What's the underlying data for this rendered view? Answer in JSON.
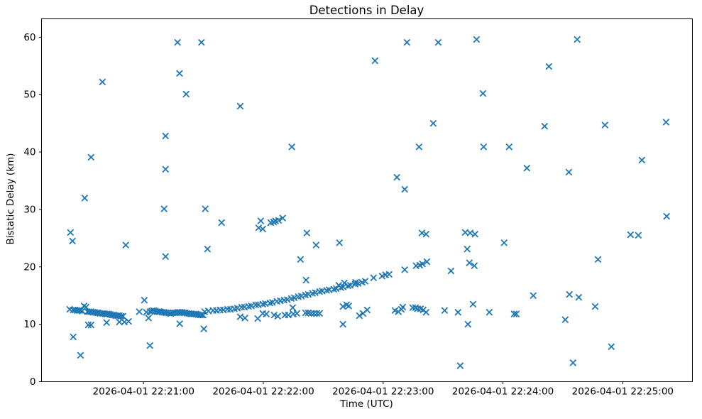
{
  "figure": {
    "background": "#ffffff",
    "title": "Detections in Delay",
    "xlabel": "Time (UTC)",
    "ylabel": "Bistatic Delay (km)"
  },
  "chart_data": {
    "type": "scatter",
    "title": "Detections in Delay",
    "xlabel": "Time (UTC)",
    "ylabel": "Bistatic Delay (km)",
    "marker": {
      "style": "x",
      "color": "#1f77b4",
      "half_size": 4.2,
      "stroke_width": 1.8
    },
    "axis_color": "#000000",
    "grid": false,
    "legend": null,
    "x_unit": "seconds after 2026-04-01 22:20:00 UTC",
    "xlim": [
      8.9,
      334.9
    ],
    "ylim": [
      0,
      63.2
    ],
    "x_ticks": [
      {
        "value": 60,
        "label": "2026-04-01 22:21:00"
      },
      {
        "value": 120,
        "label": "2026-04-01 22:22:00"
      },
      {
        "value": 180,
        "label": "2026-04-01 22:23:00"
      },
      {
        "value": 240,
        "label": "2026-04-01 22:24:00"
      },
      {
        "value": 300,
        "label": "2026-04-01 22:25:00"
      }
    ],
    "y_ticks": [
      0,
      10,
      20,
      30,
      40,
      50,
      60
    ],
    "points": [
      [
        23,
        12.6
      ],
      [
        23.4,
        26
      ],
      [
        24.4,
        24.5
      ],
      [
        24.8,
        12.5
      ],
      [
        24.8,
        7.8
      ],
      [
        25.7,
        12.5
      ],
      [
        26.6,
        12.4
      ],
      [
        27.5,
        12.4
      ],
      [
        28.4,
        12.4
      ],
      [
        28.4,
        4.6
      ],
      [
        29.3,
        12.3
      ],
      [
        30.2,
        13.2
      ],
      [
        30.5,
        32
      ],
      [
        31.2,
        13
      ],
      [
        31.9,
        12.2
      ],
      [
        32.3,
        9.9
      ],
      [
        32.8,
        12.2
      ],
      [
        33.7,
        12.2
      ],
      [
        33.7,
        9.9
      ],
      [
        33.7,
        39.1
      ],
      [
        34.6,
        12.1
      ],
      [
        35.5,
        12.1
      ],
      [
        36.4,
        12
      ],
      [
        37.2,
        12
      ],
      [
        38.1,
        11.9
      ],
      [
        39,
        11.9
      ],
      [
        39.4,
        52.2
      ],
      [
        39.9,
        11.9
      ],
      [
        40.8,
        11.8
      ],
      [
        41.5,
        10.3
      ],
      [
        41.7,
        11.8
      ],
      [
        42.6,
        11.8
      ],
      [
        43.5,
        11.7
      ],
      [
        44.4,
        11.6
      ],
      [
        45.3,
        11.6
      ],
      [
        46.1,
        11.5
      ],
      [
        47,
        11.5
      ],
      [
        47.9,
        11.5
      ],
      [
        47.9,
        10.4
      ],
      [
        48.8,
        11.4
      ],
      [
        49.7,
        11.4
      ],
      [
        50.4,
        10.4
      ],
      [
        51.1,
        23.8
      ],
      [
        52.5,
        10.5
      ],
      [
        57.9,
        12.2
      ],
      [
        60.4,
        14.2
      ],
      [
        61.4,
        12.1
      ],
      [
        62.5,
        11.1
      ],
      [
        63.2,
        6.3
      ],
      [
        63.2,
        12.2
      ],
      [
        64.1,
        12.3
      ],
      [
        65,
        12.4
      ],
      [
        65.9,
        12.3
      ],
      [
        66.8,
        12.2
      ],
      [
        67.7,
        12.2
      ],
      [
        68.5,
        12.2
      ],
      [
        69.4,
        12.1
      ],
      [
        70.3,
        12.1
      ],
      [
        70.3,
        30.1
      ],
      [
        71,
        42.8
      ],
      [
        71,
        37
      ],
      [
        71,
        21.8
      ],
      [
        71.2,
        12
      ],
      [
        72.1,
        12
      ],
      [
        73,
        11.9
      ],
      [
        73.9,
        11.9
      ],
      [
        74.8,
        12
      ],
      [
        75.6,
        12
      ],
      [
        76.5,
        12
      ],
      [
        77,
        59.1
      ],
      [
        77.4,
        12.1
      ],
      [
        78,
        53.7
      ],
      [
        78.1,
        10.1
      ],
      [
        78.3,
        12.1
      ],
      [
        79.2,
        12.1
      ],
      [
        80.1,
        12
      ],
      [
        81,
        12
      ],
      [
        81.3,
        50.1
      ],
      [
        81.9,
        11.9
      ],
      [
        82.8,
        11.9
      ],
      [
        83.6,
        11.8
      ],
      [
        84.5,
        11.8
      ],
      [
        85.4,
        11.8
      ],
      [
        86.3,
        11.8
      ],
      [
        87.2,
        11.7
      ],
      [
        88.1,
        11.6
      ],
      [
        89,
        59.1
      ],
      [
        89,
        11.6
      ],
      [
        89.9,
        11.6
      ],
      [
        90.2,
        9.2
      ],
      [
        90.6,
        12.2
      ],
      [
        90.9,
        30.1
      ],
      [
        92,
        23.1
      ],
      [
        92.5,
        12.3
      ],
      [
        94.8,
        12.4
      ],
      [
        96.5,
        12.4
      ],
      [
        98.4,
        12.5
      ],
      [
        99.1,
        27.7
      ],
      [
        100,
        12.5
      ],
      [
        102,
        12.6
      ],
      [
        103.5,
        12.6
      ],
      [
        105.5,
        12.7
      ],
      [
        107,
        12.8
      ],
      [
        108.4,
        48
      ],
      [
        108.4,
        11.3
      ],
      [
        109.1,
        13
      ],
      [
        110.5,
        13
      ],
      [
        110.8,
        11.1
      ],
      [
        112.6,
        13.1
      ],
      [
        114,
        13.2
      ],
      [
        116.2,
        13.4
      ],
      [
        117.2,
        11
      ],
      [
        117.5,
        13.4
      ],
      [
        117.6,
        26.8
      ],
      [
        118.7,
        28
      ],
      [
        119.7,
        13.5
      ],
      [
        119.7,
        26.6
      ],
      [
        119.7,
        11.9
      ],
      [
        121,
        13.6
      ],
      [
        121.5,
        11.8
      ],
      [
        123.3,
        13.7
      ],
      [
        123.7,
        27.7
      ],
      [
        124.5,
        13.8
      ],
      [
        125.1,
        27.8
      ],
      [
        125.4,
        11.6
      ],
      [
        126.1,
        28
      ],
      [
        126.8,
        14
      ],
      [
        127.2,
        11.4
      ],
      [
        127.6,
        28.1
      ],
      [
        128.5,
        14.1
      ],
      [
        129.7,
        28.5
      ],
      [
        130.4,
        14.2
      ],
      [
        130.8,
        11.6
      ],
      [
        132,
        14.3
      ],
      [
        132.5,
        11.6
      ],
      [
        134,
        14.5
      ],
      [
        134.3,
        40.9
      ],
      [
        134.7,
        12.9
      ],
      [
        135,
        11.8
      ],
      [
        135.5,
        14.6
      ],
      [
        136.8,
        11.9
      ],
      [
        137.5,
        14.8
      ],
      [
        138.6,
        21.3
      ],
      [
        139,
        14.9
      ],
      [
        141.1,
        15.1
      ],
      [
        141.1,
        12
      ],
      [
        141.4,
        17.7
      ],
      [
        141.8,
        25.9
      ],
      [
        142.5,
        15.2
      ],
      [
        142.5,
        12
      ],
      [
        143.9,
        11.9
      ],
      [
        144.6,
        15.4
      ],
      [
        145.3,
        11.9
      ],
      [
        146,
        15.5
      ],
      [
        146.4,
        23.8
      ],
      [
        146.8,
        11.9
      ],
      [
        148.2,
        15.7
      ],
      [
        148.2,
        11.9
      ],
      [
        149.5,
        15.8
      ],
      [
        151.7,
        15.9
      ],
      [
        153,
        16
      ],
      [
        155.3,
        16.1
      ],
      [
        156.5,
        16.2
      ],
      [
        157.8,
        16.8
      ],
      [
        158.1,
        24.2
      ],
      [
        158.8,
        16.4
      ],
      [
        159.9,
        13.1
      ],
      [
        159.9,
        10
      ],
      [
        160,
        16.5
      ],
      [
        160.6,
        17.2
      ],
      [
        161.7,
        13.4
      ],
      [
        162.4,
        16.7
      ],
      [
        162.8,
        13.2
      ],
      [
        163.5,
        16.8
      ],
      [
        166,
        17
      ],
      [
        166.2,
        17.3
      ],
      [
        167.5,
        17.1
      ],
      [
        168.1,
        11.5
      ],
      [
        169.5,
        17.3
      ],
      [
        169.9,
        11.9
      ],
      [
        171,
        17.5
      ],
      [
        172,
        12.5
      ],
      [
        175.2,
        18.1
      ],
      [
        175.9,
        55.9
      ],
      [
        179.5,
        18.4
      ],
      [
        181.2,
        18.6
      ],
      [
        183,
        18.7
      ],
      [
        185.9,
        12.4
      ],
      [
        186.9,
        35.6
      ],
      [
        187.6,
        12.2
      ],
      [
        189.1,
        12.6
      ],
      [
        189.8,
        13
      ],
      [
        190.8,
        19.5
      ],
      [
        190.8,
        33.5
      ],
      [
        191.9,
        59.1
      ],
      [
        194.8,
        12.9
      ],
      [
        196.2,
        12.9
      ],
      [
        196.5,
        20.2
      ],
      [
        197.3,
        12.7
      ],
      [
        198,
        40.9
      ],
      [
        198.3,
        20.3
      ],
      [
        198.7,
        12.7
      ],
      [
        199.4,
        25.9
      ],
      [
        199.7,
        20.5
      ],
      [
        200.1,
        12.5
      ],
      [
        201.5,
        12.1
      ],
      [
        201.5,
        25.7
      ],
      [
        201.9,
        20.9
      ],
      [
        205.1,
        45
      ],
      [
        207.6,
        59.1
      ],
      [
        210.8,
        12.4
      ],
      [
        214,
        19.3
      ],
      [
        217.5,
        12.1
      ],
      [
        218.6,
        2.8
      ],
      [
        221.1,
        26
      ],
      [
        222.1,
        23.1
      ],
      [
        222.5,
        10
      ],
      [
        223.2,
        20.7
      ],
      [
        223.6,
        25.9
      ],
      [
        225,
        13.5
      ],
      [
        225.7,
        20.2
      ],
      [
        226,
        25.7
      ],
      [
        226.8,
        59.6
      ],
      [
        230,
        50.2
      ],
      [
        230.3,
        40.9
      ],
      [
        233.2,
        12.1
      ],
      [
        240.6,
        24.2
      ],
      [
        243.1,
        40.9
      ],
      [
        245.6,
        11.8
      ],
      [
        246.7,
        11.8
      ],
      [
        252,
        37.2
      ],
      [
        255.2,
        15
      ],
      [
        260.9,
        44.5
      ],
      [
        263,
        54.9
      ],
      [
        271.2,
        10.8
      ],
      [
        273,
        36.5
      ],
      [
        273.3,
        15.2
      ],
      [
        275.1,
        3.3
      ],
      [
        277.2,
        59.6
      ],
      [
        278,
        14.7
      ],
      [
        286.2,
        13.1
      ],
      [
        287.6,
        21.3
      ],
      [
        291.1,
        44.7
      ],
      [
        294.3,
        6.1
      ],
      [
        303.9,
        25.6
      ],
      [
        307.8,
        25.5
      ],
      [
        309.6,
        38.6
      ],
      [
        321.7,
        45.2
      ],
      [
        322,
        28.8
      ]
    ]
  }
}
